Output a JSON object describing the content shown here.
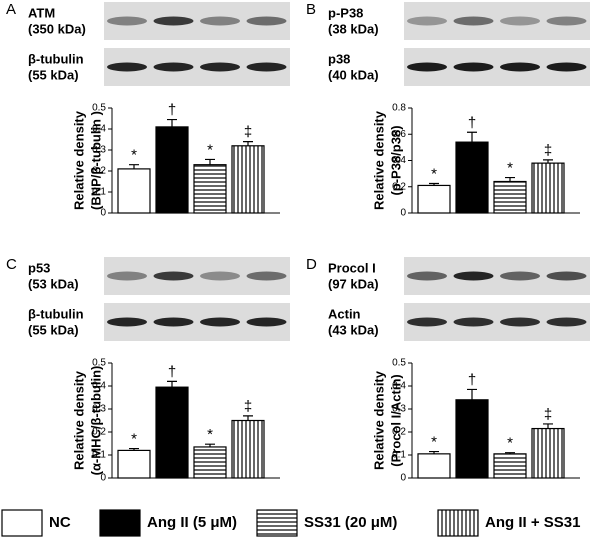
{
  "legend": {
    "names": [
      "NC",
      "Ang II (5 μM)",
      "SS31 (20 μM)",
      "Ang II + SS31"
    ],
    "fills": [
      "white",
      "black",
      "hlines",
      "vlines"
    ]
  },
  "chart_data": [
    {
      "type": "bar",
      "panel": "A",
      "blots": [
        {
          "protein": "ATM",
          "size": "(350 kDa)"
        },
        {
          "protein": "β-tubulin",
          "size": "(55 kDa)"
        }
      ],
      "ylabel": [
        "Relative density",
        "(BNP/β-tubulin )"
      ],
      "ylim": [
        0,
        0.5
      ],
      "yticks": [
        0,
        0.1,
        0.2,
        0.3,
        0.4,
        0.5
      ],
      "values": [
        0.21,
        0.41,
        0.23,
        0.32
      ],
      "errors": [
        0.02,
        0.035,
        0.025,
        0.02
      ],
      "annotations": [
        "*",
        "†",
        "*",
        "‡"
      ]
    },
    {
      "type": "bar",
      "panel": "B",
      "blots": [
        {
          "protein": "p-P38",
          "size": "(38 kDa)"
        },
        {
          "protein": "p38",
          "size": "(40 kDa)"
        }
      ],
      "ylabel": [
        "Relative density",
        "(p-P38/p38)"
      ],
      "ylim": [
        0,
        0.8
      ],
      "yticks": [
        0,
        0.2,
        0.4,
        0.6,
        0.8
      ],
      "values": [
        0.21,
        0.54,
        0.24,
        0.38
      ],
      "errors": [
        0.015,
        0.075,
        0.03,
        0.025
      ],
      "annotations": [
        "*",
        "†",
        "*",
        "‡"
      ]
    },
    {
      "type": "bar",
      "panel": "C",
      "blots": [
        {
          "protein": "p53",
          "size": "(53 kDa)"
        },
        {
          "protein": "β-tubulin",
          "size": "(55 kDa)"
        }
      ],
      "ylabel": [
        "Relative density",
        "(α-MHC/β-tubulin)"
      ],
      "ylim": [
        0,
        0.5
      ],
      "yticks": [
        0,
        0.1,
        0.2,
        0.3,
        0.4,
        0.5
      ],
      "values": [
        0.12,
        0.395,
        0.135,
        0.25
      ],
      "errors": [
        0.008,
        0.025,
        0.012,
        0.02
      ],
      "annotations": [
        "*",
        "†",
        "*",
        "‡"
      ]
    },
    {
      "type": "bar",
      "panel": "D",
      "blots": [
        {
          "protein": "Procol I",
          "size": "(97 kDa)"
        },
        {
          "protein": "Actin",
          "size": "(43 kDa)"
        }
      ],
      "ylabel": [
        "Relative density",
        "(Procol I/Actin)"
      ],
      "ylim": [
        0,
        0.5
      ],
      "yticks": [
        0,
        0.1,
        0.2,
        0.3,
        0.4,
        0.5
      ],
      "values": [
        0.105,
        0.34,
        0.105,
        0.215
      ],
      "errors": [
        0.01,
        0.045,
        0.005,
        0.02
      ],
      "annotations": [
        "*",
        "†",
        "*",
        "‡"
      ]
    }
  ]
}
